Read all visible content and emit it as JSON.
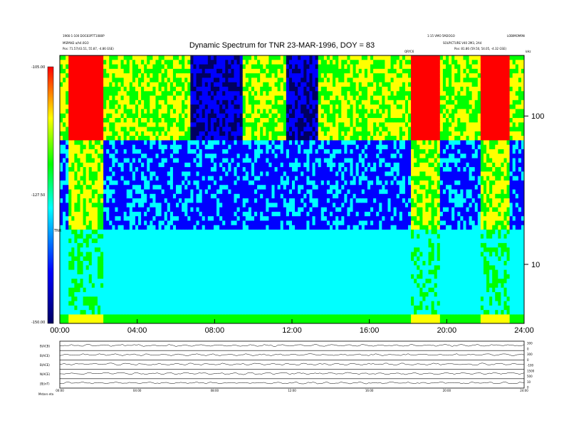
{
  "header": {
    "left_line1": "1966-1-100 DOC83P7T1080P",
    "left_line2": "MSPAN3 a/h4.0GO",
    "left_line3": "Pos: 71.57(43.51, 55.87, -4.86 GSE)",
    "right_line1": "1:15 VMO 5M2OGO",
    "right_line1b": "LOBIMOM9N",
    "right_line2": "SOLPICTURE V40 2M3, 2A4",
    "right_line3": "Pos: 81.86 (59.50, 54.05, -4.32 GSE)",
    "mid_label": "QRYC6",
    "unit_label": "kHz"
  },
  "chart_data": {
    "type": "heatmap",
    "title": "Dynamic Spectrum for TNR 23-MAR-1996, DOY = 83",
    "x_ticks": [
      "00:00",
      "04:00",
      "08:00",
      "12:00",
      "16:00",
      "20:00",
      "24:00"
    ],
    "x_range_hours": [
      0,
      24
    ],
    "y_scale": "log",
    "y_ticks": [
      "100",
      "10"
    ],
    "y_tick_values": [
      100,
      10
    ],
    "y_range_khz": [
      4,
      256
    ],
    "colorbar": {
      "label": "TNR",
      "ticks": [
        "-105.00",
        "-127.50",
        "-150.00"
      ],
      "range_db": [
        -150,
        -105
      ],
      "colors": [
        "#000060",
        "#0000ff",
        "#00ffff",
        "#00ff00",
        "#ffff00",
        "#ff0000"
      ]
    },
    "emission_bands": [
      {
        "name": "red high-frequency bursts",
        "hours": [
          0.5,
          2.2
        ],
        "color": "#ff3000"
      },
      {
        "name": "red high-frequency bursts",
        "hours": [
          18.2,
          19.6
        ],
        "color": "#ff3000"
      },
      {
        "name": "red high-frequency bursts",
        "hours": [
          21.8,
          23.3
        ],
        "color": "#ff3000"
      },
      {
        "name": "dark quiet region",
        "hours": [
          6.8,
          9.4
        ],
        "color": "#000020"
      },
      {
        "name": "dark quiet region",
        "hours": [
          11.7,
          13.3
        ],
        "color": "#000020"
      }
    ]
  },
  "bottom_panels": {
    "row_labels": [
      "B(ACB)",
      "B(ACE)",
      "B(ACE)",
      "N(ACE)",
      "|B|(nT)"
    ],
    "right_labels": [
      "300",
      "0",
      "300",
      "0",
      "-100",
      "1500",
      "500",
      "10",
      "0"
    ],
    "time_ticks": [
      "00:00",
      "04:00",
      "08:00",
      "12:00",
      "16:00",
      "20:00",
      "24:00"
    ],
    "footer": "Mstars eta"
  }
}
